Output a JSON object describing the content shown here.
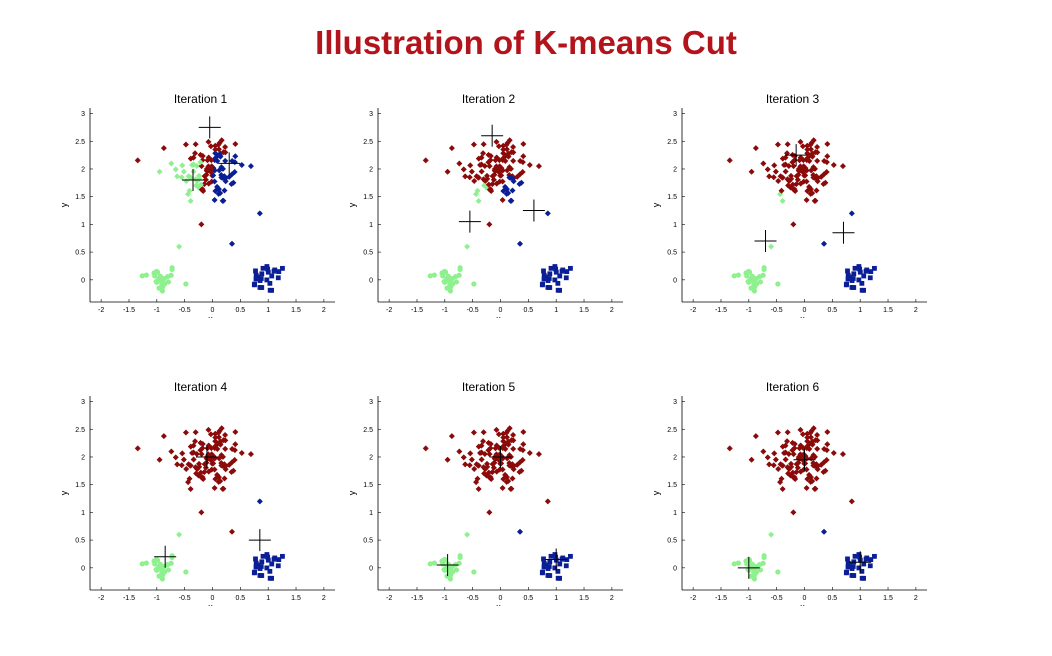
{
  "title": "Illustration of K-means Cut",
  "colors": {
    "red": "#8b0a0a",
    "green": "#8ff08f",
    "blue": "#0a1e96",
    "title": "#b3141b"
  },
  "chart_data": [
    {
      "type": "scatter",
      "title": "Iteration 1",
      "xlabel": "x",
      "ylabel": "y",
      "xlim": [
        -2.2,
        2.2
      ],
      "ylim": [
        -0.4,
        3.1
      ],
      "xticks": [
        "-2",
        "-1.5",
        "-1",
        "-0.5",
        "0",
        "0.5",
        "1",
        "1.5",
        "2"
      ],
      "yticks": [
        "0",
        "0.5",
        "1",
        "1.5",
        "2",
        "2.5",
        "3"
      ],
      "clusters": [
        {
          "marker": "circle",
          "color": "green",
          "region": "bottom-left"
        },
        {
          "marker": "square",
          "color": "blue",
          "region": "bottom-right"
        },
        {
          "marker": "diamond",
          "color": "green",
          "region": "top-left"
        },
        {
          "marker": "diamond",
          "color": "blue",
          "region": "top-right"
        },
        {
          "marker": "diamond",
          "color": "red",
          "region": "top"
        }
      ],
      "centroids": [
        [
          -0.35,
          1.8
        ],
        [
          -0.05,
          2.75
        ],
        [
          0.3,
          2.1
        ]
      ]
    },
    {
      "type": "scatter",
      "title": "Iteration 2",
      "xlabel": "x",
      "ylabel": "y",
      "xlim": [
        -2.2,
        2.2
      ],
      "ylim": [
        -0.4,
        3.1
      ],
      "xticks": [
        "-2",
        "-1.5",
        "-1",
        "-0.5",
        "0",
        "0.5",
        "1",
        "1.5",
        "2"
      ],
      "yticks": [
        "0",
        "0.5",
        "1",
        "1.5",
        "2",
        "2.5",
        "3"
      ],
      "clusters": [
        {
          "marker": "circle",
          "color": "green",
          "region": "bottom-left"
        },
        {
          "marker": "square",
          "color": "blue",
          "region": "bottom-right"
        },
        {
          "marker": "diamond",
          "color": "green",
          "region": "top-left"
        },
        {
          "marker": "diamond",
          "color": "blue",
          "region": "top-right"
        },
        {
          "marker": "diamond",
          "color": "red",
          "region": "top"
        }
      ],
      "centroids": [
        [
          -0.55,
          1.05
        ],
        [
          -0.15,
          2.6
        ],
        [
          0.6,
          1.25
        ]
      ]
    },
    {
      "type": "scatter",
      "title": "Iteration 3",
      "xlabel": "x",
      "ylabel": "y",
      "xlim": [
        -2.2,
        2.2
      ],
      "ylim": [
        -0.4,
        3.1
      ],
      "xticks": [
        "-2",
        "-1.5",
        "-1",
        "-0.5",
        "0",
        "0.5",
        "1",
        "1.5",
        "2"
      ],
      "yticks": [
        "0",
        "0.5",
        "1",
        "1.5",
        "2",
        "2.5",
        "3"
      ],
      "clusters": [
        {
          "marker": "circle",
          "color": "green",
          "region": "bottom-left"
        },
        {
          "marker": "square",
          "color": "blue",
          "region": "bottom-right"
        },
        {
          "marker": "diamond",
          "color": "green",
          "region": "top-left"
        },
        {
          "marker": "diamond",
          "color": "blue",
          "region": "top-right"
        },
        {
          "marker": "diamond",
          "color": "red",
          "region": "top"
        }
      ],
      "centroids": [
        [
          -0.7,
          0.7
        ],
        [
          -0.15,
          2.25
        ],
        [
          0.7,
          0.85
        ]
      ]
    },
    {
      "type": "scatter",
      "title": "Iteration 4",
      "xlabel": "x",
      "ylabel": "y",
      "xlim": [
        -2.2,
        2.2
      ],
      "ylim": [
        -0.4,
        3.1
      ],
      "xticks": [
        "-2",
        "-1.5",
        "-1",
        "-0.5",
        "0",
        "0.5",
        "1",
        "1.5",
        "2"
      ],
      "yticks": [
        "0",
        "0.5",
        "1",
        "1.5",
        "2",
        "2.5",
        "3"
      ],
      "clusters": [
        {
          "marker": "circle",
          "color": "green",
          "region": "bottom-left"
        },
        {
          "marker": "square",
          "color": "blue",
          "region": "bottom-right"
        },
        {
          "marker": "diamond",
          "color": "green",
          "region": "top-left"
        },
        {
          "marker": "diamond",
          "color": "blue",
          "region": "top-right"
        },
        {
          "marker": "diamond",
          "color": "red",
          "region": "top"
        }
      ],
      "centroids": [
        [
          -0.85,
          0.2
        ],
        [
          -0.1,
          2.0
        ],
        [
          0.85,
          0.5
        ]
      ]
    },
    {
      "type": "scatter",
      "title": "Iteration 5",
      "xlabel": "x",
      "ylabel": "y",
      "xlim": [
        -2.2,
        2.2
      ],
      "ylim": [
        -0.4,
        3.1
      ],
      "xticks": [
        "-2",
        "-1.5",
        "-1",
        "-0.5",
        "0",
        "0.5",
        "1",
        "1.5",
        "2"
      ],
      "yticks": [
        "0",
        "0.5",
        "1",
        "1.5",
        "2",
        "2.5",
        "3"
      ],
      "clusters": [
        {
          "marker": "circle",
          "color": "green",
          "region": "bottom-left"
        },
        {
          "marker": "square",
          "color": "blue",
          "region": "bottom-right"
        },
        {
          "marker": "diamond",
          "color": "green",
          "region": "top-left"
        },
        {
          "marker": "diamond",
          "color": "blue",
          "region": "top-right"
        },
        {
          "marker": "diamond",
          "color": "red",
          "region": "top"
        }
      ],
      "centroids": [
        [
          -0.95,
          0.05
        ],
        [
          0.0,
          2.0
        ],
        [
          1.0,
          0.15
        ]
      ]
    },
    {
      "type": "scatter",
      "title": "Iteration 6",
      "xlabel": "x",
      "ylabel": "y",
      "xlim": [
        -2.2,
        2.2
      ],
      "ylim": [
        -0.4,
        3.1
      ],
      "xticks": [
        "-2",
        "-1.5",
        "-1",
        "-0.5",
        "0",
        "0.5",
        "1",
        "1.5",
        "2"
      ],
      "yticks": [
        "0",
        "0.5",
        "1",
        "1.5",
        "2",
        "2.5",
        "3"
      ],
      "clusters": [
        {
          "marker": "circle",
          "color": "green",
          "region": "bottom-left"
        },
        {
          "marker": "square",
          "color": "blue",
          "region": "bottom-right"
        },
        {
          "marker": "diamond",
          "color": "green",
          "region": "top-left"
        },
        {
          "marker": "diamond",
          "color": "blue",
          "region": "top-right"
        },
        {
          "marker": "diamond",
          "color": "red",
          "region": "top"
        }
      ],
      "centroids": [
        [
          -1.0,
          0.0
        ],
        [
          0.0,
          1.95
        ],
        [
          1.0,
          0.1
        ]
      ]
    }
  ]
}
